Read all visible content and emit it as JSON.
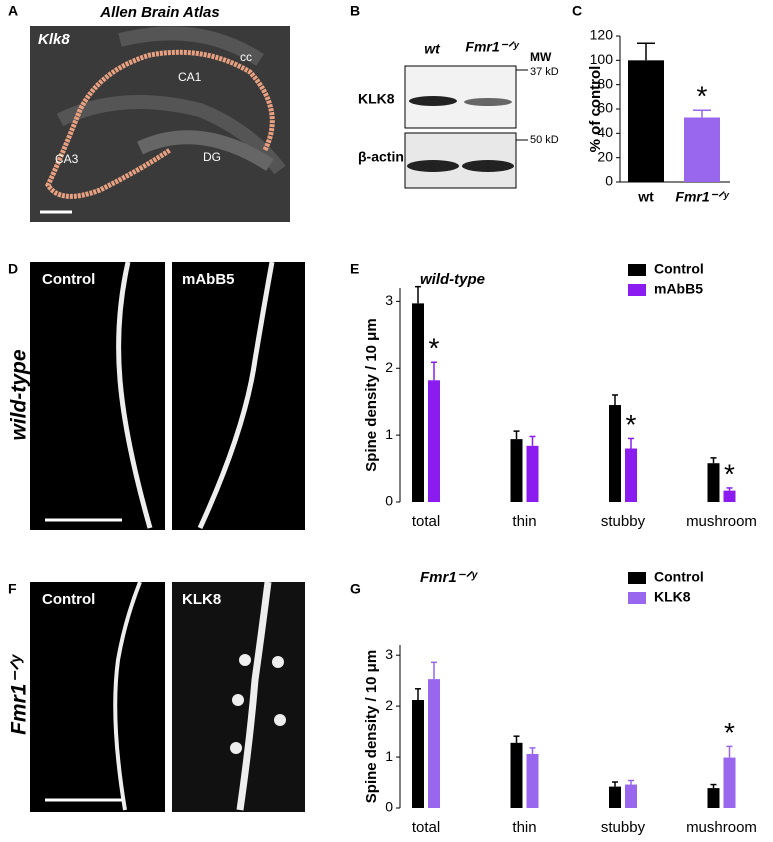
{
  "figure": {
    "panel_labels": [
      "A",
      "B",
      "C",
      "D",
      "E",
      "F",
      "G"
    ],
    "a": {
      "title": "Allen Brain Atlas",
      "gene": "Klk8",
      "regions": [
        "cc",
        "CA1",
        "CA3",
        "DG"
      ]
    },
    "b": {
      "lanes": [
        "wt",
        "Fmr1⁻ᐟʸ"
      ],
      "mw": "MW",
      "markers": [
        "37 kD",
        "50 kD"
      ],
      "proteins": [
        "KLK8",
        "β-actin"
      ]
    },
    "d": {
      "condition": "wild-type",
      "images": [
        "Control",
        "mAbB5"
      ]
    },
    "f": {
      "condition": "Fmr1⁻ᐟʸ",
      "images": [
        "Control",
        "KLK8"
      ]
    }
  },
  "chart_data": [
    {
      "type": "bar",
      "ylabel": "% of control",
      "categories": [
        "wt",
        "Fmr1⁻ᐟʸ"
      ],
      "values": [
        100,
        53
      ],
      "errors": [
        14,
        6
      ],
      "colors": [
        "#000000",
        "#9966ee"
      ],
      "annotations": [
        null,
        "*"
      ],
      "ylim": [
        0,
        120
      ],
      "yticks": [
        0,
        20,
        40,
        60,
        80,
        100,
        120
      ]
    },
    {
      "type": "grouped_bar",
      "title": "wild-type",
      "ylabel": "Spine  density / 10 μm",
      "categories": [
        "total",
        "thin",
        "stubby",
        "mushroom"
      ],
      "series": [
        {
          "name": "Control",
          "color": "#000000",
          "values": [
            2.97,
            0.94,
            1.45,
            0.58
          ],
          "errors": [
            0.25,
            0.12,
            0.15,
            0.08
          ]
        },
        {
          "name": "mAbB5",
          "color": "#8b1cf0",
          "values": [
            1.82,
            0.84,
            0.8,
            0.17
          ],
          "errors": [
            0.27,
            0.14,
            0.15,
            0.04
          ],
          "annotations": [
            "*",
            null,
            "*",
            "*"
          ]
        }
      ],
      "ylim": [
        0,
        3.2
      ],
      "yticks": [
        0,
        1,
        2,
        3
      ],
      "legend": "upper right"
    },
    {
      "type": "grouped_bar",
      "title": "Fmr1⁻ᐟʸ",
      "ylabel": "Spine  density / 10 μm",
      "categories": [
        "total",
        "thin",
        "stubby",
        "mushroom"
      ],
      "series": [
        {
          "name": "Control",
          "color": "#000000",
          "values": [
            2.12,
            1.28,
            0.42,
            0.39
          ],
          "errors": [
            0.22,
            0.13,
            0.09,
            0.07
          ]
        },
        {
          "name": "KLK8",
          "color": "#9966ee",
          "values": [
            2.53,
            1.06,
            0.46,
            0.99
          ],
          "errors": [
            0.33,
            0.12,
            0.08,
            0.22
          ],
          "annotations": [
            null,
            null,
            null,
            "*"
          ]
        }
      ],
      "ylim": [
        0,
        3.2
      ],
      "yticks": [
        0,
        1,
        2,
        3
      ],
      "legend": "upper right"
    }
  ]
}
